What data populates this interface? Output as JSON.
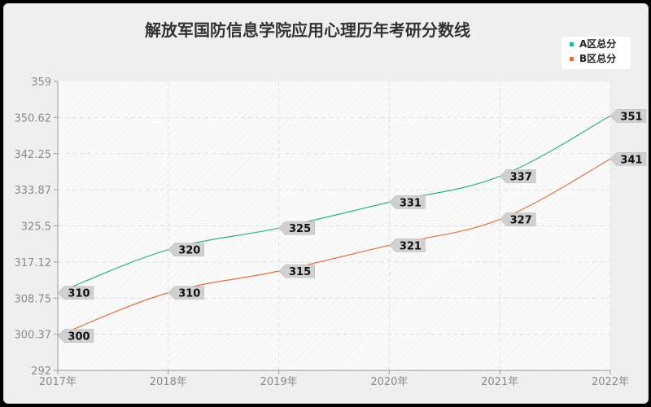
{
  "chart_data": {
    "type": "line",
    "title": "解放军国防信息学院应用心理历年考研分数线",
    "categories": [
      "2017年",
      "2018年",
      "2019年",
      "2020年",
      "2021年",
      "2022年"
    ],
    "series": [
      {
        "name": "A区总分",
        "color": "#2bb38a",
        "values": [
          310,
          320,
          325,
          331,
          337,
          351
        ]
      },
      {
        "name": "B区总分",
        "color": "#e07040",
        "values": [
          300,
          310,
          315,
          321,
          327,
          341
        ]
      }
    ],
    "yticks": [
      "359",
      "350.62",
      "342.25",
      "333.87",
      "325.5",
      "317.12",
      "308.75",
      "300.37",
      "292"
    ],
    "ylim": [
      292,
      359
    ],
    "xlabel": "",
    "ylabel": "",
    "grid": true,
    "legend_position": "top-right"
  }
}
